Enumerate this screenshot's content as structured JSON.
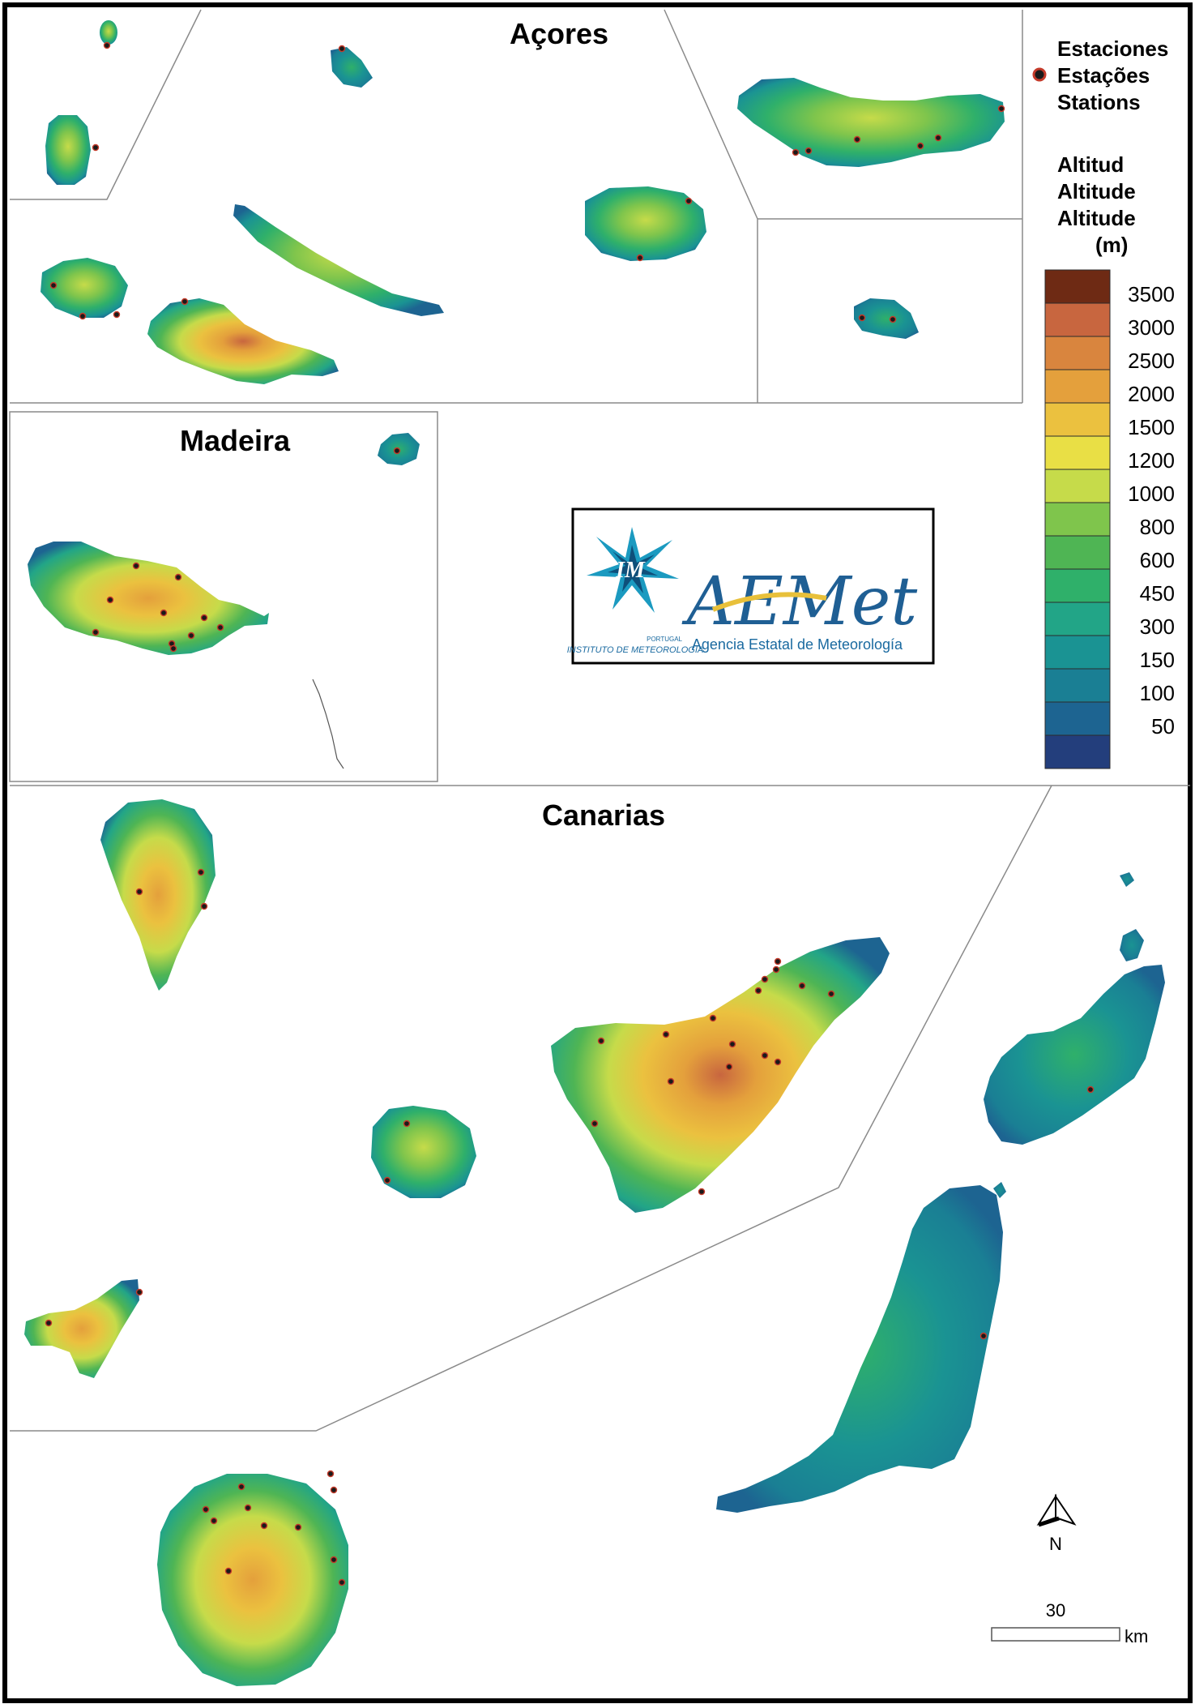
{
  "regions": {
    "azores": "Açores",
    "madeira": "Madeira",
    "canarias": "Canarias"
  },
  "legend": {
    "stations_lines": [
      "Estaciones",
      "Estações",
      "Stations"
    ],
    "altitude_lines": [
      "Altitud",
      "Altitude",
      "Altitude",
      "(m)"
    ],
    "classes": [
      {
        "label": "3500",
        "color": "#6e2a14"
      },
      {
        "label": "3000",
        "color": "#c8663f"
      },
      {
        "label": "2500",
        "color": "#d9853e"
      },
      {
        "label": "2000",
        "color": "#e4a03c"
      },
      {
        "label": "1500",
        "color": "#ebc13f"
      },
      {
        "label": "1200",
        "color": "#e9df45"
      },
      {
        "label": "1000",
        "color": "#c6db4a"
      },
      {
        "label": "800",
        "color": "#7fc54c"
      },
      {
        "label": "600",
        "color": "#4fb554"
      },
      {
        "label": "450",
        "color": "#2fb06a"
      },
      {
        "label": "300",
        "color": "#22a587"
      },
      {
        "label": "150",
        "color": "#1a9393"
      },
      {
        "label": "100",
        "color": "#1a7f94"
      },
      {
        "label": "50",
        "color": "#1d6491"
      },
      {
        "label": "",
        "color": "#233e7c"
      }
    ]
  },
  "logos": {
    "im_letters": "IM",
    "im_country": "PORTUGAL",
    "im_name": "INSTITUTO DE METEOROLOGIA",
    "aemet_wordmark": "AEMet",
    "aemet_name": "Agencia Estatal de Meteorología"
  },
  "north_arrow": "N",
  "scale_bar": {
    "value": "30",
    "unit": "km"
  },
  "colors": {
    "frame": "#000000",
    "panel_border": "#8a8a8a",
    "station_ring": "#c43a2a"
  }
}
